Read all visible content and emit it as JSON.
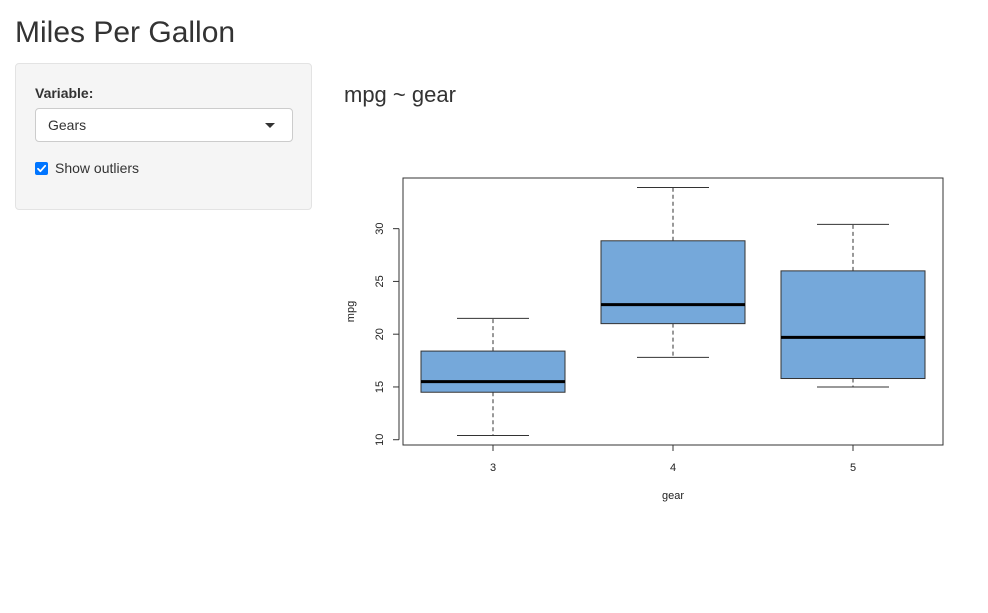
{
  "app": {
    "title": "Miles Per Gallon"
  },
  "sidebar": {
    "variable_label": "Variable:",
    "variable_selected": "Gears",
    "outliers_label": "Show outliers",
    "outliers_checked": true
  },
  "main": {
    "plot_title": "mpg ~ gear"
  },
  "chart_data": {
    "type": "box",
    "xlabel": "gear",
    "ylabel": "mpg",
    "categories": [
      "3",
      "4",
      "5"
    ],
    "ylim": [
      9.5,
      34.8
    ],
    "yticks": [
      "10",
      "15",
      "20",
      "25",
      "30"
    ],
    "box_color": "#75a8da",
    "median_color": "#000000",
    "boxes": [
      {
        "category": "3",
        "min": 10.4,
        "q1": 14.5,
        "median": 15.5,
        "q3": 18.4,
        "max": 21.5
      },
      {
        "category": "4",
        "min": 17.8,
        "q1": 21.0,
        "median": 22.8,
        "q3": 28.85,
        "max": 33.9
      },
      {
        "category": "5",
        "min": 15.0,
        "q1": 15.8,
        "median": 19.7,
        "q3": 26.0,
        "max": 30.4
      }
    ]
  }
}
